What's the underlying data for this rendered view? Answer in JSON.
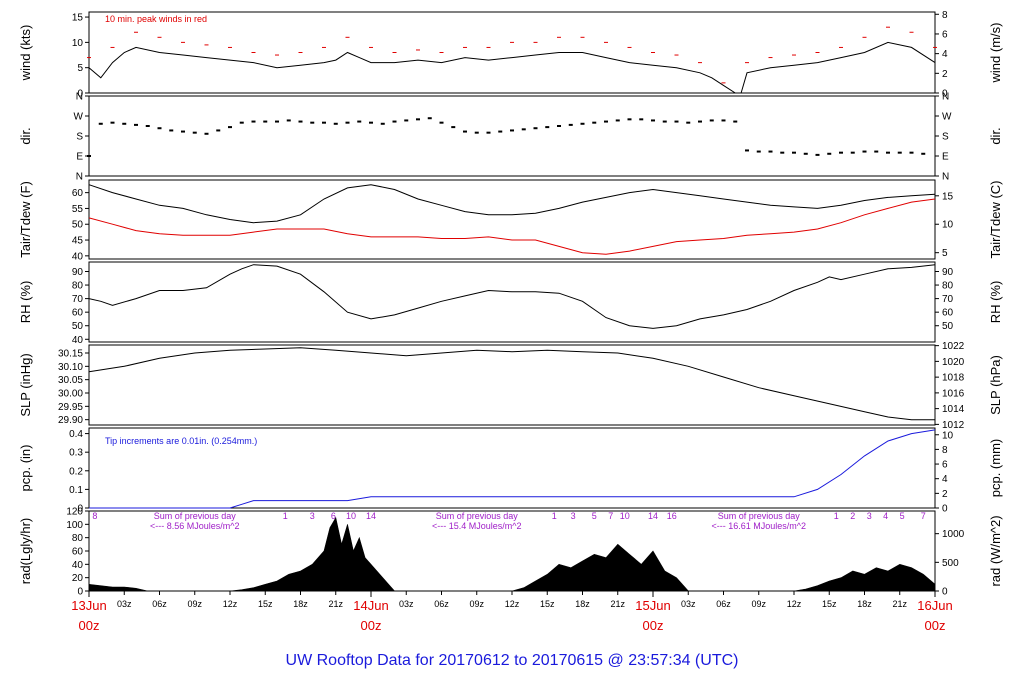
{
  "title": "UW Rooftop Data for 20170612  to  20170615 @ 23:57:34  (UTC)",
  "colors": {
    "main": "#000000",
    "peak": "#e00000",
    "precip": "#1a1adc",
    "annot": "#a020c8",
    "day": "#e00000",
    "title": "#1a1adc"
  },
  "x_axis": {
    "hours_total": 72,
    "hour_ticks": [
      {
        "h": 3,
        "label": "03z"
      },
      {
        "h": 6,
        "label": "06z"
      },
      {
        "h": 9,
        "label": "09z"
      },
      {
        "h": 12,
        "label": "12z"
      },
      {
        "h": 15,
        "label": "15z"
      },
      {
        "h": 18,
        "label": "18z"
      },
      {
        "h": 21,
        "label": "21z"
      },
      {
        "h": 27,
        "label": "03z"
      },
      {
        "h": 30,
        "label": "06z"
      },
      {
        "h": 33,
        "label": "09z"
      },
      {
        "h": 36,
        "label": "12z"
      },
      {
        "h": 39,
        "label": "15z"
      },
      {
        "h": 42,
        "label": "18z"
      },
      {
        "h": 45,
        "label": "21z"
      },
      {
        "h": 51,
        "label": "03z"
      },
      {
        "h": 54,
        "label": "06z"
      },
      {
        "h": 57,
        "label": "09z"
      },
      {
        "h": 60,
        "label": "12z"
      },
      {
        "h": 63,
        "label": "15z"
      },
      {
        "h": 66,
        "label": "18z"
      },
      {
        "h": 69,
        "label": "21z"
      }
    ],
    "day_labels": [
      {
        "h": 0,
        "date": "13Jun",
        "time": "00z"
      },
      {
        "h": 24,
        "date": "14Jun",
        "time": "00z"
      },
      {
        "h": 48,
        "date": "15Jun",
        "time": "00z"
      },
      {
        "h": 72,
        "date": "16Jun",
        "time": "00z"
      }
    ]
  },
  "chart_data": [
    {
      "type": "line",
      "name": "wind",
      "left_label": "wind (kts)",
      "right_label": "wind (m/s)",
      "ylim": [
        0,
        16
      ],
      "left_ticks": [
        0,
        5,
        10,
        15
      ],
      "right_ticks": [
        0,
        2,
        4,
        6,
        8
      ],
      "annotation": "10 min. peak winds in red",
      "series": [
        {
          "name": "",
          "x": [
            0,
            1,
            2,
            3,
            4,
            6,
            8,
            10,
            12,
            14,
            16,
            18,
            20,
            21,
            22,
            23,
            24,
            26,
            28,
            30,
            32,
            34,
            36,
            38,
            40,
            42,
            44,
            46,
            48,
            50,
            52,
            53,
            54,
            55,
            55.5,
            56,
            58,
            60,
            62,
            64,
            66,
            68,
            70,
            72
          ],
          "y": [
            5,
            3,
            6,
            8,
            9,
            8,
            7.5,
            7,
            6.5,
            6,
            5,
            5.5,
            6,
            6.5,
            8,
            7,
            6,
            6,
            6.5,
            6,
            7,
            6.5,
            7,
            7.5,
            8,
            8,
            7,
            6,
            5.5,
            5,
            4,
            3,
            1.5,
            0,
            0,
            4,
            5,
            5.5,
            6,
            7,
            8,
            10,
            9,
            6
          ]
        }
      ],
      "peaks": {
        "x": [
          0,
          2,
          4,
          6,
          8,
          10,
          12,
          14,
          16,
          18,
          20,
          22,
          24,
          26,
          28,
          30,
          32,
          34,
          36,
          38,
          40,
          42,
          44,
          46,
          48,
          50,
          52,
          54,
          56,
          58,
          60,
          62,
          64,
          66,
          68,
          70,
          72
        ],
        "y": [
          7,
          9,
          12,
          11,
          10,
          9.5,
          9,
          8,
          7.5,
          8,
          9,
          11,
          9,
          8,
          8.5,
          8,
          9,
          9,
          10,
          10,
          11,
          11,
          10,
          9,
          8,
          7.5,
          6,
          2,
          6,
          7,
          7.5,
          8,
          9,
          11,
          13,
          12,
          9
        ]
      }
    },
    {
      "type": "scatter",
      "name": "dir.",
      "left_label": "dir.",
      "right_label": "dir.",
      "ylim": [
        0,
        360
      ],
      "tick_values": [
        0,
        90,
        180,
        270,
        360
      ],
      "tick_labels": [
        "N",
        "E",
        "S",
        "W",
        "N"
      ],
      "x": [
        0,
        1,
        2,
        3,
        4,
        5,
        6,
        7,
        8,
        9,
        10,
        11,
        12,
        13,
        14,
        15,
        16,
        17,
        18,
        19,
        20,
        21,
        22,
        23,
        24,
        25,
        26,
        27,
        28,
        29,
        30,
        31,
        32,
        33,
        34,
        35,
        36,
        37,
        38,
        39,
        40,
        41,
        42,
        43,
        44,
        45,
        46,
        47,
        48,
        49,
        50,
        51,
        52,
        53,
        54,
        55,
        56,
        57,
        58,
        59,
        60,
        61,
        62,
        63,
        64,
        65,
        66,
        67,
        68,
        69,
        70,
        71
      ],
      "y": [
        90,
        235,
        240,
        235,
        230,
        225,
        215,
        205,
        200,
        195,
        190,
        205,
        220,
        240,
        245,
        245,
        245,
        250,
        245,
        240,
        240,
        235,
        240,
        245,
        240,
        235,
        245,
        250,
        255,
        260,
        240,
        220,
        200,
        195,
        195,
        200,
        205,
        210,
        215,
        220,
        225,
        230,
        235,
        240,
        245,
        250,
        255,
        255,
        250,
        245,
        245,
        240,
        245,
        250,
        250,
        245,
        115,
        110,
        110,
        105,
        105,
        100,
        95,
        100,
        105,
        105,
        110,
        110,
        105,
        105,
        105,
        100
      ]
    },
    {
      "type": "line",
      "name": "Tair/Tdew",
      "left_label": "Tair/Tdew (F)",
      "right_label": "Tair/Tdew (C)",
      "ylim": [
        39,
        64
      ],
      "left_ticks": [
        40,
        45,
        50,
        55,
        60
      ],
      "right_ticks": [
        5,
        10,
        15
      ],
      "series": [
        {
          "name": "",
          "x": [
            0,
            2,
            4,
            6,
            8,
            10,
            12,
            14,
            16,
            18,
            20,
            22,
            24,
            26,
            28,
            30,
            32,
            34,
            36,
            38,
            40,
            42,
            44,
            46,
            48,
            50,
            52,
            54,
            56,
            58,
            60,
            62,
            64,
            66,
            68,
            70,
            72
          ],
          "y": [
            62.5,
            60,
            58,
            56,
            55,
            53,
            51.5,
            50.5,
            51,
            53,
            58,
            61.5,
            62.5,
            61,
            58,
            56,
            54,
            53,
            53,
            53.5,
            55,
            57,
            58.5,
            60,
            61,
            60,
            59,
            58,
            57,
            56,
            55.5,
            55,
            56,
            57.5,
            58.5,
            59,
            59.5
          ]
        },
        {
          "name": "",
          "x": [
            0,
            2,
            4,
            6,
            8,
            10,
            12,
            14,
            16,
            18,
            20,
            22,
            24,
            26,
            28,
            30,
            32,
            34,
            36,
            38,
            40,
            42,
            44,
            46,
            48,
            50,
            52,
            54,
            56,
            58,
            60,
            62,
            64,
            66,
            68,
            70,
            72
          ],
          "y": [
            52,
            50,
            48,
            47,
            46.5,
            46.5,
            46.5,
            47.5,
            48.5,
            48.5,
            48.5,
            47,
            46,
            46,
            46,
            45.5,
            45.5,
            46,
            45,
            45,
            43,
            41,
            40.5,
            41.5,
            43,
            44.5,
            45,
            45.5,
            46.5,
            47,
            47.5,
            48.5,
            50.5,
            53,
            55,
            57,
            58
          ]
        }
      ]
    },
    {
      "type": "line",
      "name": "RH",
      "left_label": "RH (%)",
      "right_label": "RH (%)",
      "ylim": [
        38,
        97
      ],
      "left_ticks": [
        40,
        50,
        60,
        70,
        80,
        90
      ],
      "right_ticks": [
        50,
        60,
        70,
        80,
        90
      ],
      "series": [
        {
          "name": "",
          "x": [
            0,
            1,
            2,
            4,
            6,
            8,
            10,
            12,
            13,
            14,
            16,
            18,
            20,
            22,
            24,
            26,
            28,
            30,
            32,
            34,
            36,
            38,
            40,
            42,
            44,
            46,
            48,
            50,
            52,
            54,
            56,
            58,
            60,
            62,
            63,
            64,
            66,
            68,
            70,
            72
          ],
          "y": [
            70,
            68,
            65,
            70,
            76,
            76,
            78,
            88,
            92,
            95,
            94,
            88,
            75,
            60,
            55,
            58,
            63,
            68,
            72,
            76,
            75,
            75,
            74,
            68,
            56,
            50,
            48,
            50,
            55,
            58,
            62,
            68,
            76,
            82,
            86,
            84,
            88,
            92,
            93,
            95
          ]
        }
      ]
    },
    {
      "type": "line",
      "name": "SLP",
      "left_label": "SLP (inHg)",
      "right_label": "SLP (hPa)",
      "ylim": [
        29.88,
        30.18
      ],
      "left_ticks": [
        29.9,
        29.95,
        30.0,
        30.05,
        30.1,
        30.15
      ],
      "right_ticks": [
        1012,
        1014,
        1016,
        1018,
        1020,
        1022
      ],
      "right_tick_values": [
        29.8823,
        29.9414,
        30.0004,
        30.0595,
        30.1186,
        30.1776
      ],
      "series": [
        {
          "name": "",
          "x": [
            0,
            3,
            6,
            9,
            12,
            15,
            18,
            21,
            24,
            27,
            30,
            33,
            36,
            39,
            42,
            45,
            48,
            51,
            54,
            57,
            60,
            63,
            66,
            68,
            70,
            72
          ],
          "y": [
            30.08,
            30.1,
            30.13,
            30.15,
            30.16,
            30.165,
            30.17,
            30.16,
            30.15,
            30.14,
            30.15,
            30.16,
            30.155,
            30.16,
            30.155,
            30.15,
            30.13,
            30.1,
            30.06,
            30.02,
            29.99,
            29.96,
            29.93,
            29.91,
            29.9,
            29.9
          ]
        }
      ]
    },
    {
      "type": "area",
      "name": "pcp.",
      "left_label": "pcp. (in)",
      "right_label": "pcp. (mm)",
      "ylim": [
        0,
        0.43
      ],
      "left_ticks": [
        0.0,
        0.1,
        0.2,
        0.3,
        0.4
      ],
      "right_ticks": [
        0,
        2,
        4,
        6,
        8,
        10
      ],
      "right_tick_values": [
        0,
        0.0787,
        0.1575,
        0.2362,
        0.315,
        0.3937
      ],
      "annotation": "Tip increments are 0.01in. (0.254mm.)",
      "series": [
        {
          "name": "",
          "x": [
            0,
            12,
            13,
            14,
            22,
            24,
            60,
            62,
            64,
            66,
            68,
            70,
            72
          ],
          "y": [
            0,
            0,
            0.02,
            0.04,
            0.04,
            0.06,
            0.06,
            0.1,
            0.18,
            0.28,
            0.36,
            0.4,
            0.42
          ]
        }
      ]
    },
    {
      "type": "area",
      "name": "rad",
      "left_label": "rad(Lgly/hr)",
      "right_label": "rad (W/m^2)",
      "ylim": [
        0,
        120
      ],
      "left_ticks": [
        0,
        20,
        40,
        60,
        80,
        100,
        120
      ],
      "right_ticks": [
        0,
        500,
        1000
      ],
      "right_tick_values": [
        0,
        43,
        86
      ],
      "annotations": [
        {
          "h": 0.5,
          "text": "8"
        },
        {
          "h": 9,
          "text": "Sum of previous day"
        },
        {
          "h": 9,
          "text": "<--- 8.56 MJoules/m^2"
        },
        {
          "h": 33,
          "text": "Sum of previous day"
        },
        {
          "h": 33,
          "text": "<--- 15.4 MJoules/m^2"
        },
        {
          "h": 57,
          "text": "Sum of previous day"
        },
        {
          "h": 57,
          "text": "<--- 16.61 MJoules/m^2"
        }
      ],
      "sun_hours": [
        {
          "h": 16.7,
          "text": "1"
        },
        {
          "h": 19,
          "text": "3"
        },
        {
          "h": 20.8,
          "text": "6"
        },
        {
          "h": 22.3,
          "text": "10"
        },
        {
          "h": 24,
          "text": "14"
        },
        {
          "h": 39.6,
          "text": "1"
        },
        {
          "h": 41.2,
          "text": "3"
        },
        {
          "h": 43,
          "text": "5"
        },
        {
          "h": 44.4,
          "text": "7"
        },
        {
          "h": 45.6,
          "text": "10"
        },
        {
          "h": 48,
          "text": "14"
        },
        {
          "h": 49.6,
          "text": "16"
        },
        {
          "h": 63.6,
          "text": "1"
        },
        {
          "h": 65,
          "text": "2"
        },
        {
          "h": 66.4,
          "text": "3"
        },
        {
          "h": 67.8,
          "text": "4"
        },
        {
          "h": 69.2,
          "text": "5"
        },
        {
          "h": 71,
          "text": "7"
        }
      ],
      "series": [
        {
          "name": "",
          "x": [
            0,
            1,
            2,
            3,
            4,
            4.5,
            5,
            12,
            13,
            14,
            15,
            16,
            17,
            18,
            19,
            20,
            20.5,
            21,
            21.5,
            22,
            22.5,
            23,
            23.5,
            24,
            25,
            25.5,
            26,
            36,
            37,
            38,
            39,
            40,
            41,
            42,
            43,
            44,
            45,
            46,
            47,
            48,
            49,
            50,
            50.5,
            51,
            60,
            61,
            62,
            63,
            64,
            65,
            66,
            67,
            68,
            69,
            70,
            71,
            72
          ],
          "y": [
            10,
            8,
            6,
            6,
            4,
            2,
            0,
            0,
            2,
            5,
            10,
            15,
            25,
            30,
            40,
            60,
            95,
            110,
            70,
            100,
            60,
            80,
            50,
            40,
            20,
            10,
            0,
            0,
            5,
            15,
            25,
            40,
            35,
            45,
            55,
            50,
            70,
            55,
            40,
            60,
            30,
            20,
            10,
            0,
            0,
            3,
            8,
            15,
            20,
            30,
            25,
            35,
            30,
            40,
            35,
            25,
            10
          ]
        }
      ]
    }
  ]
}
